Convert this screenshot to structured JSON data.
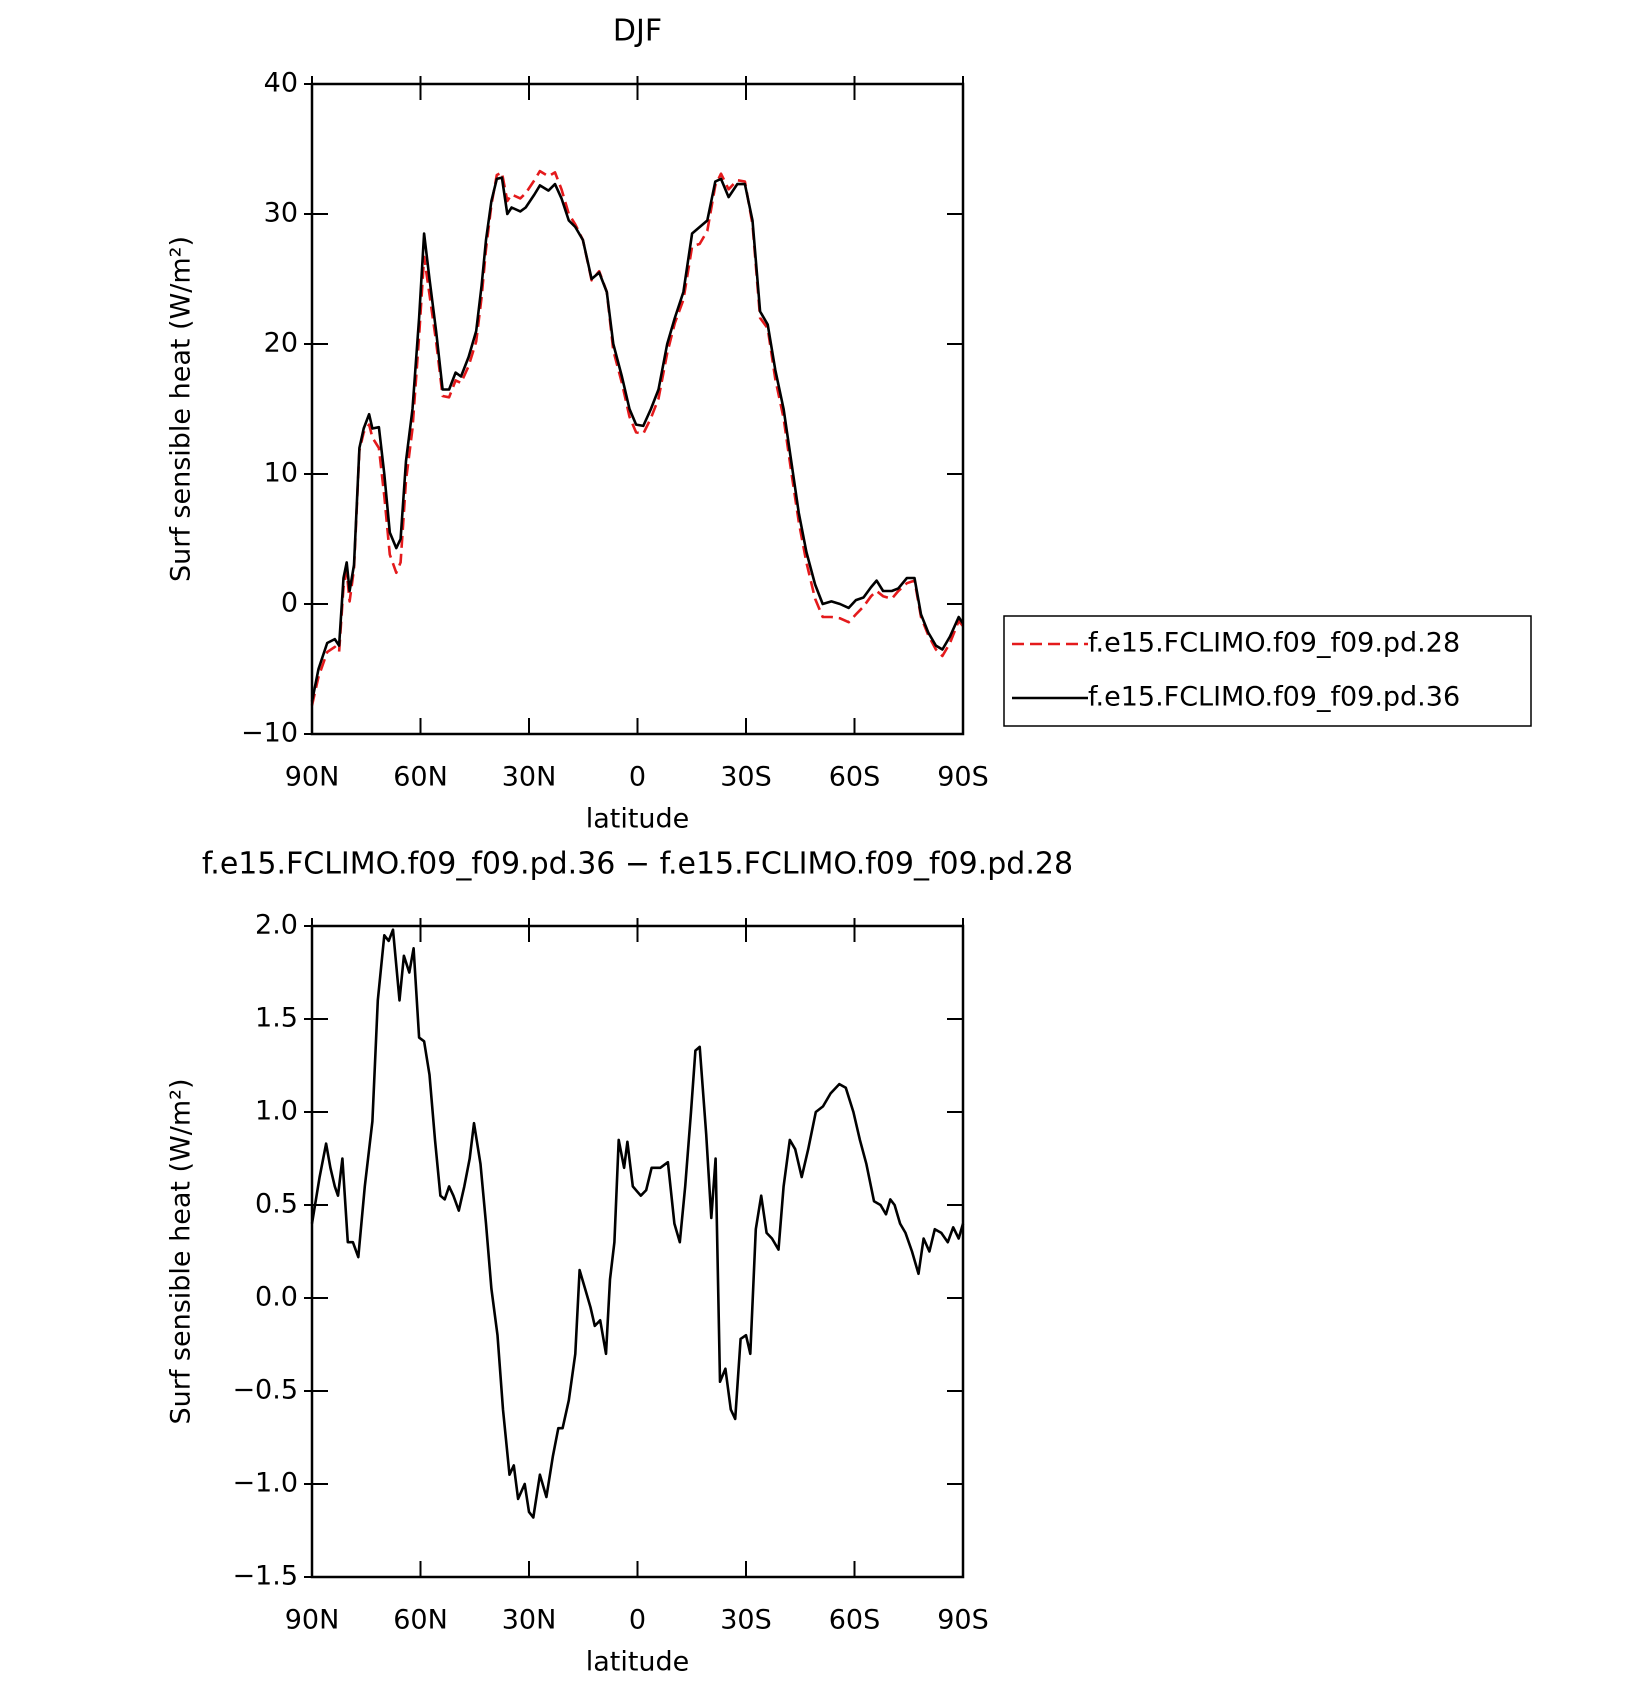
{
  "chart_data": [
    {
      "type": "line",
      "title": "DJF",
      "xlabel": "latitude",
      "ylabel": "Surf sensible heat (W/m²)",
      "xlim": [
        90,
        -90
      ],
      "ylim": [
        -10,
        40
      ],
      "xticks": [
        {
          "value": 90,
          "label": "90N"
        },
        {
          "value": 60,
          "label": "60N"
        },
        {
          "value": 30,
          "label": "30N"
        },
        0,
        {
          "value": -30,
          "label": "30S"
        },
        {
          "value": -60,
          "label": "60S"
        },
        {
          "value": -90,
          "label": "90S"
        }
      ],
      "yticks": [
        {
          "value": -10,
          "label": "−10"
        },
        0,
        10,
        20,
        30,
        40
      ],
      "legend": "outside-right",
      "x": [
        90,
        88.2,
        85.8,
        83.7,
        82.5,
        81.3,
        80.4,
        79.6,
        78.4,
        76.9,
        75.7,
        74.2,
        73.3,
        71.5,
        70,
        68.5,
        66.7,
        65.5,
        64,
        62.2,
        60.4,
        59,
        57.5,
        55.7,
        53.9,
        52.1,
        50.3,
        48.8,
        46.7,
        44.6,
        43.1,
        41.9,
        40.4,
        38.9,
        37.5,
        36,
        34.8,
        32.4,
        30.9,
        28.5,
        27,
        24.6,
        22.8,
        21,
        19,
        17.2,
        15.1,
        12.7,
        10.6,
        8.5,
        6.7,
        4.3,
        2.2,
        0.4,
        -1.6,
        -3.7,
        -5.8,
        -8.2,
        -10.3,
        -12.7,
        -15.1,
        -17.2,
        -19.3,
        -21.5,
        -23.1,
        -25.2,
        -27.6,
        -29.7,
        -31.8,
        -33.9,
        -36,
        -38.1,
        -40.4,
        -42.5,
        -44.6,
        -46.7,
        -49.1,
        -51.2,
        -53.6,
        -56,
        -58.4,
        -60.4,
        -62.5,
        -64.6,
        -66.1,
        -67.9,
        -70.3,
        -72.1,
        -74.5,
        -76.6,
        -78.4,
        -80.4,
        -82.5,
        -84.3,
        -86.4,
        -88.8,
        -90
      ],
      "series": [
        {
          "name": "f.e15.FCLIMO.f09_f09.pd.28",
          "color": "#e41a1c",
          "dash": true,
          "values": [
            -7.8,
            -5.6,
            -3.7,
            -3.3,
            -3.7,
            1.3,
            2.5,
            0.2,
            2.7,
            11.8,
            13.2,
            13.8,
            12.8,
            12,
            8.3,
            3.8,
            2.4,
            3.2,
            9.5,
            13.5,
            20.6,
            26.7,
            23.8,
            20.2,
            16,
            15.9,
            17.2,
            17,
            18.3,
            20.2,
            23.6,
            27.3,
            30.7,
            33,
            33.2,
            31,
            31.5,
            31.2,
            31.6,
            32.6,
            33.3,
            32.9,
            33.2,
            31.9,
            30,
            29.2,
            28,
            24.9,
            25.6,
            24,
            19.5,
            17,
            14.4,
            13.2,
            13.1,
            14.3,
            15.8,
            19.3,
            21.6,
            23.4,
            27.5,
            27.7,
            28.7,
            32.2,
            33.1,
            31.9,
            32.6,
            32.5,
            29.2,
            22,
            21.2,
            17.3,
            14.3,
            10.2,
            6.3,
            3.2,
            0.4,
            -1,
            -1,
            -1.1,
            -1.4,
            -0.8,
            -0.2,
            0.6,
            1,
            0.6,
            0.4,
            1,
            1.6,
            1.8,
            -1,
            -2.4,
            -3.5,
            -4,
            -3,
            -1.3,
            -1.7
          ]
        },
        {
          "name": "f.e15.FCLIMO.f09_f09.pd.36",
          "color": "#000000",
          "dash": false,
          "values": [
            -7.5,
            -5,
            -3,
            -2.7,
            -3.2,
            2,
            3.2,
            1,
            3,
            12,
            13.5,
            14.6,
            13.5,
            13.6,
            10,
            5.5,
            4.3,
            5,
            11,
            15,
            22,
            28.5,
            25,
            21,
            16.5,
            16.5,
            17.8,
            17.5,
            19,
            21,
            24.5,
            28,
            31,
            32.7,
            32.8,
            30,
            30.5,
            30.2,
            30.5,
            31.5,
            32.2,
            31.8,
            32.3,
            31.2,
            29.5,
            29,
            28,
            25,
            25.5,
            24,
            20,
            17.5,
            15,
            13.8,
            13.7,
            15,
            16.5,
            20,
            22,
            24,
            28.5,
            29,
            29.5,
            32.5,
            32.7,
            31.3,
            32.3,
            32.3,
            29.5,
            22.5,
            21.5,
            18,
            15,
            11,
            7,
            4,
            1.5,
            0,
            0.2,
            0,
            -0.3,
            0.3,
            0.5,
            1.3,
            1.8,
            1,
            1,
            1.2,
            2,
            2,
            -0.8,
            -2.2,
            -3.2,
            -3.5,
            -2.5,
            -1,
            -1.5
          ]
        }
      ]
    },
    {
      "type": "line",
      "title": "f.e15.FCLIMO.f09_f09.pd.36 − f.e15.FCLIMO.f09_f09.pd.28",
      "xlabel": "latitude",
      "ylabel": "Surf sensible heat (W/m²)",
      "xlim": [
        90,
        -90
      ],
      "ylim": [
        -1.5,
        2
      ],
      "xticks": [
        {
          "value": 90,
          "label": "90N"
        },
        {
          "value": 60,
          "label": "60N"
        },
        {
          "value": 30,
          "label": "30N"
        },
        0,
        {
          "value": -30,
          "label": "30S"
        },
        {
          "value": -60,
          "label": "60S"
        },
        {
          "value": -90,
          "label": "90S"
        }
      ],
      "yticks": [
        {
          "value": -1.5,
          "label": "−1.5"
        },
        {
          "value": -1,
          "label": "−1.0"
        },
        {
          "value": -0.5,
          "label": "−0.5"
        },
        {
          "value": 0,
          "label": "0.0"
        },
        0.5,
        {
          "value": 1,
          "label": "1.0"
        },
        1.5,
        {
          "value": 2,
          "label": "2.0"
        }
      ],
      "x": [
        90,
        87.9,
        86.1,
        84.9,
        83.7,
        82.8,
        81.6,
        80.1,
        78.7,
        77.2,
        75.4,
        73.3,
        71.8,
        70,
        68.8,
        67.6,
        65.8,
        64.6,
        63.1,
        61.9,
        60.4,
        59,
        57.5,
        56,
        54.5,
        53.3,
        52.1,
        50.9,
        49.4,
        47.9,
        46.4,
        45.2,
        43.4,
        41.9,
        40.4,
        38.7,
        37.2,
        35.4,
        34.2,
        33,
        31.2,
        30,
        28.8,
        27,
        25.2,
        23.4,
        21.9,
        20.7,
        19,
        17.2,
        16,
        14.5,
        13,
        11.8,
        10.3,
        8.7,
        7.6,
        6.4,
        5.2,
        3.7,
        2.8,
        1.3,
        -0.9,
        -2.4,
        -3.9,
        -6.3,
        -8.4,
        -10.2,
        -11.7,
        -13.2,
        -14.8,
        -16,
        -17.2,
        -19,
        -20.4,
        -21.6,
        -22.8,
        -24.3,
        -25.8,
        -27,
        -28.5,
        -30,
        -31.2,
        -32.7,
        -34.2,
        -35.7,
        -37.2,
        -39,
        -40.4,
        -42.1,
        -43.6,
        -45.4,
        -47.2,
        -49.3,
        -51.3,
        -53.4,
        -55.8,
        -57.6,
        -59.7,
        -61.5,
        -63.3,
        -65.4,
        -67.2,
        -68.7,
        -69.9,
        -71.1,
        -72.6,
        -74.1,
        -75.9,
        -77.7,
        -79.1,
        -80.7,
        -82.2,
        -84,
        -85.8,
        -87.3,
        -88.8,
        -90
      ],
      "series": [
        {
          "name": "f.e15.FCLIMO.f09_f09.pd.36 − f.e15.FCLIMO.f09_f09.pd.28",
          "color": "#000000",
          "dash": false,
          "values": [
            0.4,
            0.65,
            0.83,
            0.7,
            0.6,
            0.55,
            0.75,
            0.3,
            0.3,
            0.22,
            0.6,
            0.95,
            1.6,
            1.95,
            1.92,
            1.98,
            1.6,
            1.84,
            1.75,
            1.88,
            1.4,
            1.38,
            1.2,
            0.85,
            0.55,
            0.53,
            0.6,
            0.55,
            0.47,
            0.6,
            0.75,
            0.94,
            0.72,
            0.4,
            0.05,
            -0.2,
            -0.6,
            -0.95,
            -0.9,
            -1.08,
            -1,
            -1.15,
            -1.18,
            -0.95,
            -1.07,
            -0.85,
            -0.7,
            -0.7,
            -0.55,
            -0.3,
            0.15,
            0.05,
            -0.05,
            -0.15,
            -0.12,
            -0.3,
            0.1,
            0.3,
            0.85,
            0.7,
            0.84,
            0.6,
            0.55,
            0.58,
            0.7,
            0.7,
            0.73,
            0.4,
            0.3,
            0.6,
            1,
            1.33,
            1.35,
            0.88,
            0.43,
            0.75,
            -0.45,
            -0.38,
            -0.6,
            -0.65,
            -0.22,
            -0.2,
            -0.3,
            0.37,
            0.55,
            0.35,
            0.32,
            0.26,
            0.6,
            0.85,
            0.8,
            0.65,
            0.8,
            1,
            1.03,
            1.1,
            1.15,
            1.13,
            1,
            0.85,
            0.72,
            0.52,
            0.5,
            0.45,
            0.53,
            0.5,
            0.4,
            0.35,
            0.25,
            0.13,
            0.32,
            0.25,
            0.37,
            0.35,
            0.3,
            0.38,
            0.32,
            0.4
          ]
        }
      ]
    }
  ]
}
